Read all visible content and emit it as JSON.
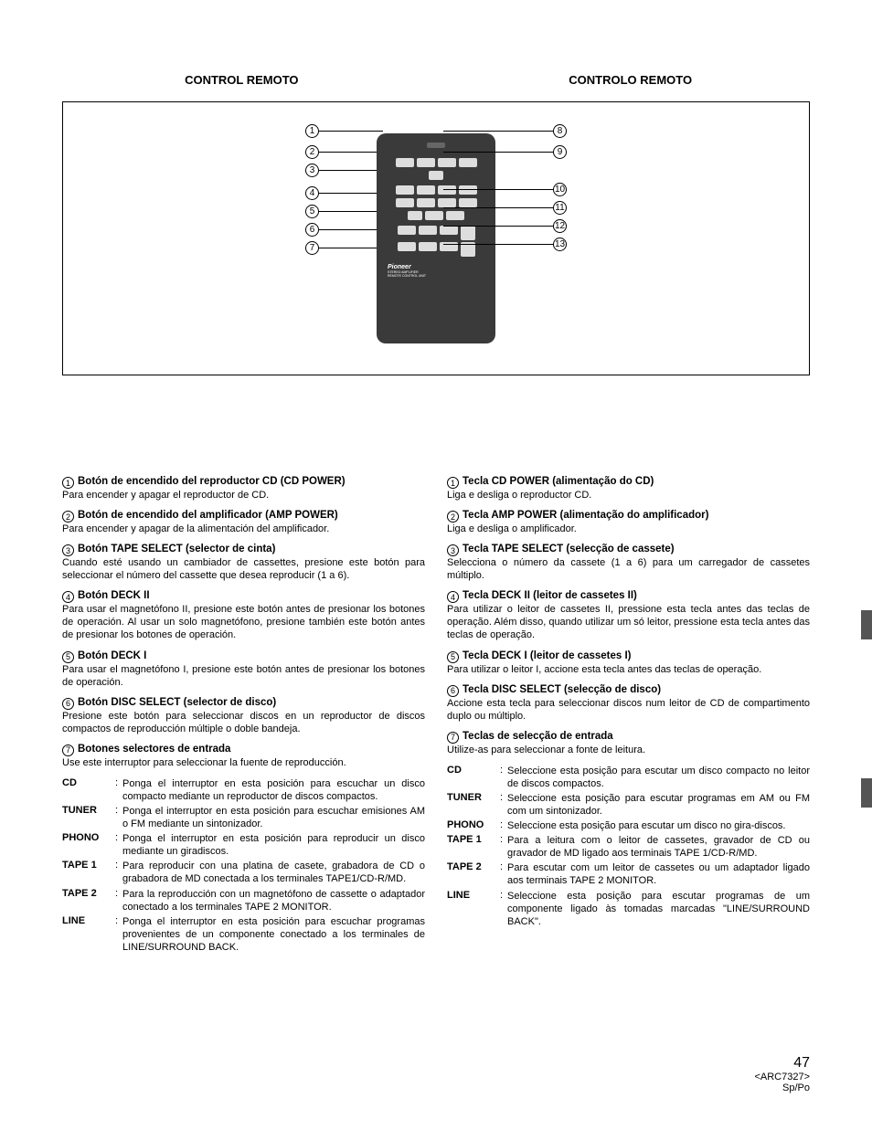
{
  "header": {
    "left": "CONTROL REMOTO",
    "right": "CONTROLO REMOTO"
  },
  "callouts": {
    "left": [
      "1",
      "2",
      "3",
      "4",
      "5",
      "6",
      "7"
    ],
    "right": [
      "8",
      "9",
      "10",
      "11",
      "12",
      "13"
    ]
  },
  "remote": {
    "brand": "Pioneer",
    "sub1": "STEREO AMPLIFIER",
    "sub2": "REMOTE CONTROL UNIT"
  },
  "left_col": [
    {
      "n": "1",
      "t": "Botón de encendido del reproductor CD (CD POWER)",
      "b": "Para encender y apagar el reproductor de CD."
    },
    {
      "n": "2",
      "t": "Botón de encendido del amplificador (AMP POWER)",
      "b": "Para encender y apagar de la alimentación del amplificador."
    },
    {
      "n": "3",
      "t": "Botón TAPE SELECT (selector de cinta)",
      "b": "Cuando esté usando un cambiador de cassettes, presione este botón para seleccionar el número del cassette que desea reproducir (1 a 6)."
    },
    {
      "n": "4",
      "t": "Botón DECK II",
      "b": "Para usar el magnetófono II, presione este botón antes de presionar los botones de operación. Al usar un solo magnetófono, presione también este botón antes de presionar los botones de operación."
    },
    {
      "n": "5",
      "t": "Botón DECK I",
      "b": "Para usar el magnetófono I, presione este botón antes de presionar los botones de operación."
    },
    {
      "n": "6",
      "t": "Botón DISC SELECT (selector de disco)",
      "b": "Presione este botón para seleccionar discos en un reproductor de discos compactos de reproducción múltiple o doble bandeja."
    },
    {
      "n": "7",
      "t": "Botones selectores de entrada",
      "b": "Use este interruptor para seleccionar la fuente de reproducción."
    }
  ],
  "left_defs": [
    {
      "term": "CD",
      "def": "Ponga el interruptor en esta posición para escuchar un disco compacto mediante un reproductor de discos compactos."
    },
    {
      "term": "TUNER",
      "def": "Ponga el interruptor en esta posición para escuchar emisiones AM o FM mediante un sintonizador."
    },
    {
      "term": "PHONO",
      "def": "Ponga el interruptor en esta posición para reproducir un disco mediante un giradiscos."
    },
    {
      "term": "TAPE 1",
      "def": "Para reproducir con una platina de casete, grabadora de CD o grabadora de MD conectada a los terminales TAPE1/CD-R/MD."
    },
    {
      "term": "TAPE 2",
      "def": "Para la reproducción con un magnetófono de cassette o adaptador conectado a los terminales TAPE 2 MONITOR."
    },
    {
      "term": "LINE",
      "def": "Ponga el interruptor en esta posición para escuchar programas provenientes de un componente conectado a los terminales de LINE/SURROUND BACK."
    }
  ],
  "right_col": [
    {
      "n": "1",
      "t": "Tecla CD POWER (alimentação do CD)",
      "b": "Liga e desliga o reproductor CD."
    },
    {
      "n": "2",
      "t": "Tecla AMP POWER (alimentação do amplificador)",
      "b": "Liga e desliga o amplificador."
    },
    {
      "n": "3",
      "t": "Tecla TAPE SELECT (selecção de cassete)",
      "b": "Selecciona o número da cassete (1 a 6) para um carregador de cassetes múltiplo."
    },
    {
      "n": "4",
      "t": "Tecla DECK II (leitor de cassetes II)",
      "b": "Para utilizar o leitor de cassetes II, pressione esta tecla antes das teclas de operação. Além disso, quando utilizar um só leitor, pressione esta tecla antes das teclas de operação."
    },
    {
      "n": "5",
      "t": "Tecla DECK I (leitor de cassetes I)",
      "b": "Para utilizar o leitor I, accione esta tecla antes das teclas de operação."
    },
    {
      "n": "6",
      "t": "Tecla DISC SELECT (selecção de disco)",
      "b": "Accione esta tecla para seleccionar discos num leitor de CD de compartimento duplo ou múltiplo."
    },
    {
      "n": "7",
      "t": "Teclas de selecção de entrada",
      "b": "Utilize-as para seleccionar a fonte de leitura."
    }
  ],
  "right_defs": [
    {
      "term": "CD",
      "def": "Seleccione esta posição para escutar um disco compacto no leitor de discos compactos."
    },
    {
      "term": "TUNER",
      "def": "Seleccione esta posição para escutar programas em AM ou FM com um sintonizador."
    },
    {
      "term": "PHONO",
      "def": "Seleccione esta posição para escutar um disco no gira-discos."
    },
    {
      "term": "TAPE 1",
      "def": "Para a leitura com o leitor de cassetes, gravador de CD ou gravador de MD ligado aos terminais TAPE 1/CD-R/MD."
    },
    {
      "term": "TAPE 2",
      "def": "Para escutar com um leitor de cassetes ou um adaptador ligado aos terminais TAPE 2 MONITOR."
    },
    {
      "term": "LINE",
      "def": "Seleccione esta posição para escutar programas de um componente ligado às tomadas marcadas \"LINE/SURROUND BACK\"."
    }
  ],
  "footer": {
    "page": "47",
    "code": "<ARC7327>",
    "lang": "Sp/Po"
  }
}
